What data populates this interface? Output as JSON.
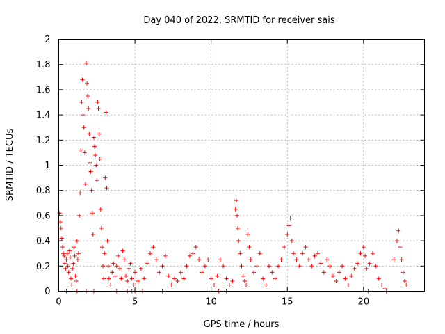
{
  "chart_data": {
    "type": "scatter",
    "title": "Day 040 of 2022, SRMTID for receiver sais",
    "xlabel": "GPS time / hours",
    "ylabel": "SRMTID / TECUs",
    "xlim": [
      0,
      24
    ],
    "ylim": [
      0,
      2
    ],
    "x_ticks": [
      0,
      5,
      10,
      15,
      20
    ],
    "x_tick_labels": [
      "0",
      "5",
      "10",
      "15",
      "20"
    ],
    "y_ticks": [
      0,
      0.2,
      0.4,
      0.6,
      0.8,
      1,
      1.2,
      1.4,
      1.6,
      1.8,
      2
    ],
    "y_tick_labels": [
      "0",
      "0.2",
      "0.4",
      "0.6",
      "0.8",
      "1",
      "1.2",
      "1.4",
      "1.6",
      "1.8",
      "2"
    ],
    "grid": true,
    "marker": "+",
    "marker_color": "#ff0000",
    "series": [
      {
        "name": "SRMTID",
        "points": [
          [
            0.05,
            0.62
          ],
          [
            0.1,
            0.55
          ],
          [
            0.15,
            0.5
          ],
          [
            0.2,
            0.42
          ],
          [
            0.25,
            0.35
          ],
          [
            0.3,
            0.3
          ],
          [
            0.35,
            0.28
          ],
          [
            0.4,
            0.22
          ],
          [
            0.45,
            0.18
          ],
          [
            0.5,
            0.25
          ],
          [
            0.55,
            0.3
          ],
          [
            0.6,
            0.2
          ],
          [
            0.65,
            0.15
          ],
          [
            0.7,
            0.32
          ],
          [
            0.75,
            0.27
          ],
          [
            0.8,
            0.1
          ],
          [
            0.85,
            0.05
          ],
          [
            0.9,
            0.18
          ],
          [
            0.95,
            0.22
          ],
          [
            1.0,
            0.35
          ],
          [
            1.05,
            0.28
          ],
          [
            1.1,
            0.12
          ],
          [
            1.15,
            0.08
          ],
          [
            1.2,
            0.4
          ],
          [
            1.25,
            0.25
          ],
          [
            1.3,
            0.3
          ],
          [
            1.35,
            0.6
          ],
          [
            1.4,
            0.78
          ],
          [
            1.45,
            1.12
          ],
          [
            1.5,
            1.5
          ],
          [
            1.55,
            1.68
          ],
          [
            1.6,
            1.4
          ],
          [
            1.65,
            1.3
          ],
          [
            1.7,
            1.1
          ],
          [
            1.75,
            0.85
          ],
          [
            1.8,
            1.81
          ],
          [
            1.85,
            1.65
          ],
          [
            1.9,
            1.55
          ],
          [
            1.95,
            1.45
          ],
          [
            2.0,
            1.25
          ],
          [
            2.05,
            1.02
          ],
          [
            2.1,
            0.95
          ],
          [
            2.15,
            0.8
          ],
          [
            2.2,
            0.62
          ],
          [
            2.25,
            0.45
          ],
          [
            2.3,
            1.22
          ],
          [
            2.35,
            1.15
          ],
          [
            2.4,
            1.08
          ],
          [
            2.45,
            1.0
          ],
          [
            2.5,
            0.88
          ],
          [
            2.55,
            1.5
          ],
          [
            2.6,
            1.45
          ],
          [
            2.65,
            1.25
          ],
          [
            2.7,
            1.05
          ],
          [
            2.75,
            0.65
          ],
          [
            2.8,
            0.5
          ],
          [
            2.85,
            0.35
          ],
          [
            2.9,
            0.2
          ],
          [
            2.95,
            0.1
          ],
          [
            3.0,
            0.3
          ],
          [
            3.05,
            0.9
          ],
          [
            3.1,
            1.42
          ],
          [
            3.15,
            0.82
          ],
          [
            3.2,
            0.4
          ],
          [
            3.25,
            0.2
          ],
          [
            3.3,
            0.1
          ],
          [
            3.4,
            0.05
          ],
          [
            3.5,
            0.15
          ],
          [
            3.6,
            0.22
          ],
          [
            3.7,
            0.12
          ],
          [
            3.8,
            0.2
          ],
          [
            3.9,
            0.28
          ],
          [
            4.0,
            0.18
          ],
          [
            4.1,
            0.1
          ],
          [
            4.2,
            0.32
          ],
          [
            4.3,
            0.25
          ],
          [
            4.4,
            0.12
          ],
          [
            4.5,
            0.08
          ],
          [
            4.6,
            0.18
          ],
          [
            4.7,
            0.22
          ],
          [
            4.8,
            0.1
          ],
          [
            4.9,
            0.05
          ],
          [
            5.0,
            0.15
          ],
          [
            5.2,
            0.08
          ],
          [
            5.4,
            0.18
          ],
          [
            5.6,
            0.1
          ],
          [
            5.8,
            0.22
          ],
          [
            6.0,
            0.3
          ],
          [
            6.2,
            0.35
          ],
          [
            6.4,
            0.25
          ],
          [
            6.6,
            0.15
          ],
          [
            6.8,
            0.2
          ],
          [
            7.0,
            0.28
          ],
          [
            7.2,
            0.12
          ],
          [
            7.4,
            0.05
          ],
          [
            7.6,
            0.1
          ],
          [
            7.8,
            0.08
          ],
          [
            8.0,
            0.15
          ],
          [
            8.2,
            0.1
          ],
          [
            8.4,
            0.2
          ],
          [
            8.6,
            0.28
          ],
          [
            8.8,
            0.3
          ],
          [
            9.0,
            0.35
          ],
          [
            9.2,
            0.25
          ],
          [
            9.4,
            0.15
          ],
          [
            9.6,
            0.2
          ],
          [
            9.8,
            0.25
          ],
          [
            10.0,
            0.1
          ],
          [
            10.2,
            0.05
          ],
          [
            10.4,
            0.12
          ],
          [
            10.6,
            0.25
          ],
          [
            10.8,
            0.2
          ],
          [
            11.0,
            0.1
          ],
          [
            11.2,
            0.05
          ],
          [
            11.4,
            0.08
          ],
          [
            11.6,
            0.65
          ],
          [
            11.65,
            0.72
          ],
          [
            11.7,
            0.6
          ],
          [
            11.75,
            0.5
          ],
          [
            11.8,
            0.4
          ],
          [
            11.9,
            0.3
          ],
          [
            12.0,
            0.2
          ],
          [
            12.1,
            0.12
          ],
          [
            12.2,
            0.08
          ],
          [
            12.3,
            0.05
          ],
          [
            12.4,
            0.45
          ],
          [
            12.5,
            0.35
          ],
          [
            12.6,
            0.25
          ],
          [
            12.8,
            0.15
          ],
          [
            13.0,
            0.2
          ],
          [
            13.2,
            0.3
          ],
          [
            13.4,
            0.1
          ],
          [
            13.6,
            0.05
          ],
          [
            13.8,
            0.2
          ],
          [
            14.0,
            0.15
          ],
          [
            14.2,
            0.1
          ],
          [
            14.4,
            0.2
          ],
          [
            14.6,
            0.25
          ],
          [
            14.8,
            0.35
          ],
          [
            15.0,
            0.45
          ],
          [
            15.1,
            0.52
          ],
          [
            15.2,
            0.58
          ],
          [
            15.3,
            0.4
          ],
          [
            15.4,
            0.3
          ],
          [
            15.6,
            0.25
          ],
          [
            15.8,
            0.2
          ],
          [
            16.0,
            0.3
          ],
          [
            16.2,
            0.35
          ],
          [
            16.4,
            0.25
          ],
          [
            16.6,
            0.2
          ],
          [
            16.8,
            0.28
          ],
          [
            17.0,
            0.3
          ],
          [
            17.2,
            0.22
          ],
          [
            17.4,
            0.15
          ],
          [
            17.6,
            0.25
          ],
          [
            17.8,
            0.2
          ],
          [
            18.0,
            0.12
          ],
          [
            18.2,
            0.08
          ],
          [
            18.4,
            0.15
          ],
          [
            18.6,
            0.2
          ],
          [
            18.8,
            0.1
          ],
          [
            19.0,
            0.05
          ],
          [
            19.2,
            0.12
          ],
          [
            19.4,
            0.18
          ],
          [
            19.6,
            0.22
          ],
          [
            19.8,
            0.3
          ],
          [
            20.0,
            0.35
          ],
          [
            20.1,
            0.28
          ],
          [
            20.2,
            0.18
          ],
          [
            20.4,
            0.22
          ],
          [
            20.6,
            0.3
          ],
          [
            20.8,
            0.2
          ],
          [
            21.0,
            0.1
          ],
          [
            21.2,
            0.05
          ],
          [
            21.4,
            0.02
          ],
          [
            22.0,
            0.25
          ],
          [
            22.2,
            0.4
          ],
          [
            22.3,
            0.48
          ],
          [
            22.4,
            0.35
          ],
          [
            22.5,
            0.25
          ],
          [
            22.6,
            0.15
          ],
          [
            22.7,
            0.08
          ],
          [
            22.8,
            0.05
          ],
          [
            0.5,
            0.0
          ],
          [
            1.2,
            0.0
          ],
          [
            1.8,
            0.0
          ],
          [
            2.3,
            0.0
          ],
          [
            3.8,
            0.0
          ],
          [
            4.5,
            0.0
          ],
          [
            4.8,
            0.0
          ],
          [
            5.0,
            0.0
          ],
          [
            5.5,
            0.0
          ],
          [
            6.8,
            0.0
          ],
          [
            10.5,
            0.0
          ],
          [
            11.0,
            0.0
          ],
          [
            20.3,
            0.0
          ],
          [
            21.5,
            0.0
          ]
        ]
      }
    ]
  }
}
